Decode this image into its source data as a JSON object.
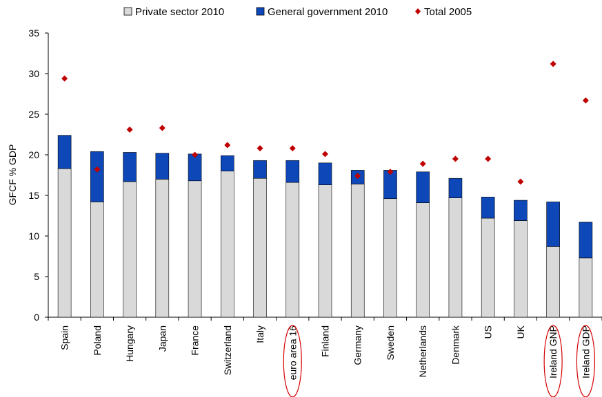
{
  "chart_data": {
    "type": "bar",
    "stacked": true,
    "categories": [
      "Spain",
      "Poland",
      "Hungary",
      "Japan",
      "France",
      "Switzerland",
      "Italy",
      "euro area 16",
      "Finland",
      "Germany",
      "Sweden",
      "Netherlands",
      "Denmark",
      "US",
      "UK",
      "Ireland GNP",
      "Ireland GDP"
    ],
    "highlighted_categories": [
      "euro area 16",
      "Ireland GNP",
      "Ireland GDP"
    ],
    "series": [
      {
        "name": "Private sector 2010",
        "kind": "bar",
        "color": "#d9d9d9",
        "values": [
          18.3,
          14.2,
          16.7,
          17.0,
          16.8,
          18.0,
          17.1,
          16.6,
          16.3,
          16.4,
          14.6,
          14.1,
          14.7,
          12.2,
          11.9,
          8.7,
          7.3
        ]
      },
      {
        "name": "General government 2010",
        "kind": "bar",
        "color": "#0d47b8",
        "values": [
          4.1,
          6.2,
          3.6,
          3.2,
          3.3,
          1.9,
          2.2,
          2.7,
          2.7,
          1.7,
          3.5,
          3.8,
          2.4,
          2.6,
          2.5,
          5.5,
          4.4
        ]
      },
      {
        "name": "Total 2005",
        "kind": "marker",
        "color": "#c00000",
        "values": [
          29.4,
          18.2,
          23.1,
          23.3,
          20.0,
          21.2,
          20.8,
          20.8,
          20.1,
          17.4,
          17.9,
          18.9,
          19.5,
          19.5,
          16.7,
          31.2,
          26.7
        ]
      }
    ],
    "ylabel": "GFCF % GDP",
    "xlabel": "",
    "ylim": [
      0,
      35
    ],
    "yticks": [
      "0",
      "5",
      "10",
      "15",
      "20",
      "25",
      "30",
      "35"
    ],
    "grid": false,
    "legend_position": "top"
  }
}
